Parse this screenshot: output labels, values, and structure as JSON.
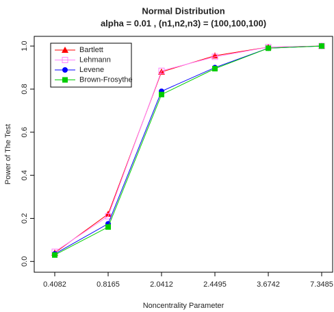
{
  "chart_data": {
    "type": "line",
    "title": "Normal Distribution",
    "subtitle": "alpha = 0.01 , (n1,n2,n3) = (100,100,100)",
    "x_label": "Noncentrality Parameter",
    "y_label": "Power of The Test",
    "categories": [
      "0.4082",
      "0.8165",
      "2.0412",
      "2.4495",
      "3.6742",
      "7.3485"
    ],
    "series": [
      {
        "name": "Bartlett",
        "color": "#ff0000",
        "marker": "triangle",
        "values": [
          0.04,
          0.22,
          0.88,
          0.955,
          0.995,
          1.0
        ]
      },
      {
        "name": "Lehmann",
        "color": "#ff80ff",
        "marker": "open-square",
        "values": [
          0.045,
          0.21,
          0.885,
          0.95,
          0.995,
          1.0
        ]
      },
      {
        "name": "Levene",
        "color": "#0000ff",
        "marker": "circle",
        "values": [
          0.035,
          0.175,
          0.79,
          0.9,
          0.99,
          1.0
        ]
      },
      {
        "name": "Brown-Frosythe",
        "color": "#00cc00",
        "marker": "square",
        "values": [
          0.03,
          0.16,
          0.775,
          0.895,
          0.99,
          1.0
        ]
      }
    ],
    "ylim": [
      -0.05,
      1.045
    ],
    "yticks": [
      {
        "value": 0,
        "label": "0.0"
      },
      0.2,
      0.4,
      0.6,
      0.8,
      {
        "value": 1,
        "label": "1.0"
      }
    ],
    "legend": "top-left"
  }
}
